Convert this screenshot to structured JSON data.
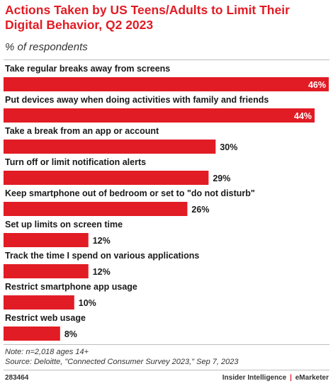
{
  "header": {
    "title": "Actions Taken by US Teens/Adults to Limit Their Digital Behavior, Q2 2023",
    "subtitle": "% of respondents"
  },
  "colors": {
    "bar": "#e11c24",
    "title": "#e11c24",
    "label": "#1a1a1a"
  },
  "chart_data": {
    "type": "bar",
    "orientation": "horizontal",
    "categories": [
      "Take regular breaks away from screens",
      "Put devices away when doing activities with family and friends",
      "Take a break from an app or account",
      "Turn off or limit notification alerts",
      "Keep smartphone out of bedroom or set to \"do not disturb\"",
      "Set up limits on screen time",
      "Track the time I spend on various applications",
      "Restrict smartphone app usage",
      "Restrict web usage"
    ],
    "values": [
      46,
      44,
      30,
      29,
      26,
      12,
      12,
      10,
      8
    ],
    "value_labels": [
      "46%",
      "44%",
      "30%",
      "29%",
      "26%",
      "12%",
      "12%",
      "10%",
      "8%"
    ],
    "xlim": [
      0,
      46
    ],
    "grid": false,
    "legend": "none"
  },
  "notes": {
    "note": "Note: n=2,018 ages 14+",
    "source": "Source: Deloitte, \"Connected Consumer Survey 2023,\" Sep 7, 2023"
  },
  "footer": {
    "id": "283464",
    "brand_left": "Insider Intelligence",
    "separator": "|",
    "brand_right": "eMarketer"
  }
}
